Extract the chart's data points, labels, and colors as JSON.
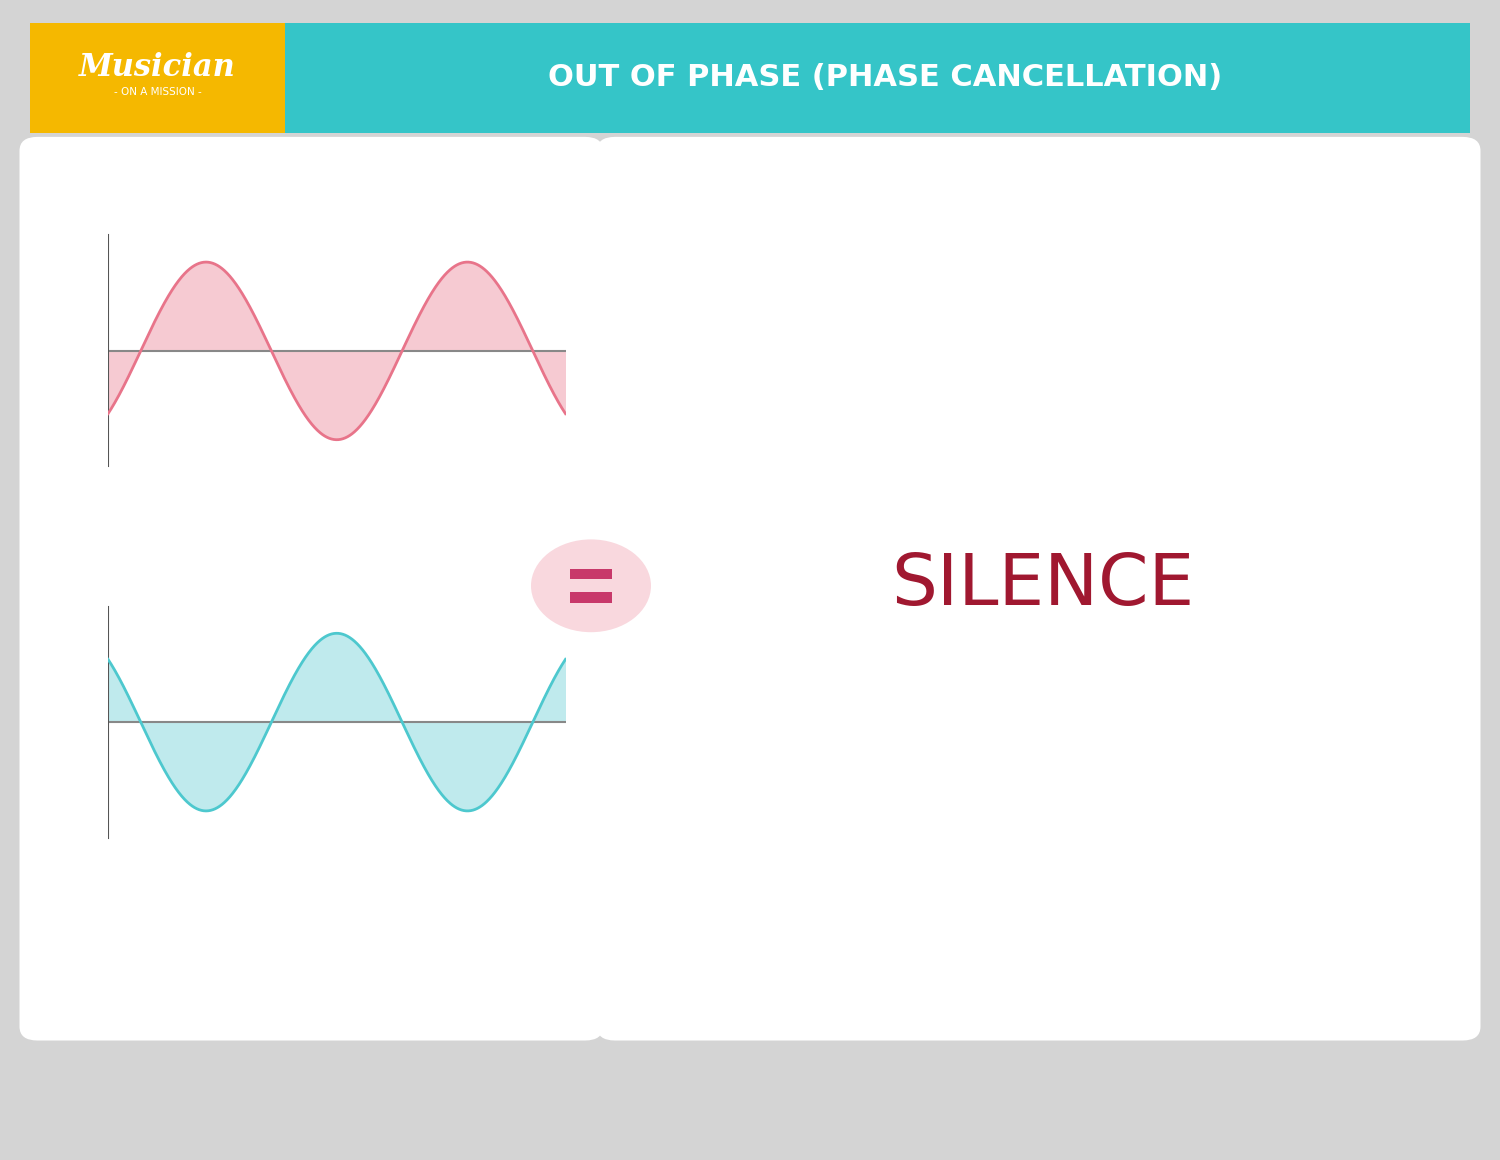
{
  "background_color": "#d4d4d4",
  "header_yellow": "#F5B800",
  "header_teal": "#35C5C8",
  "header_title": "OUT OF PHASE (PHASE CANCELLATION)",
  "header_title_color": "#FFFFFF",
  "panel_bg": "#FFFFFF",
  "wave1_color": "#E8748A",
  "wave1_fill": "#F5C5CE",
  "wave2_color": "#4DC8CE",
  "wave2_fill": "#B8E8EC",
  "axis_color": "#888888",
  "silence_color": "#A01830",
  "silence_text": "SILENCE",
  "silence_fontsize": 52,
  "equals_bg": "#F9D8DE",
  "equals_color": "#C8386A"
}
